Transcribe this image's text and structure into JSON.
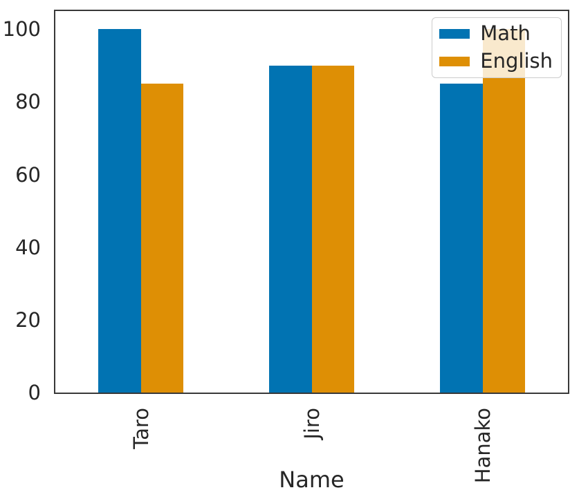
{
  "chart_data": {
    "type": "bar",
    "title": "",
    "xlabel": "Name",
    "ylabel": "",
    "categories": [
      "Taro",
      "Jiro",
      "Hanako"
    ],
    "series": [
      {
        "name": "Math",
        "color": "#0173b2",
        "values": [
          100,
          90,
          85
        ]
      },
      {
        "name": "English",
        "color": "#de8f05",
        "values": [
          85,
          90,
          100
        ]
      }
    ],
    "yticks": [
      0,
      20,
      40,
      60,
      80,
      100
    ],
    "ylim": [
      0,
      105
    ],
    "grid": false,
    "legend_position": "upper right",
    "legend_entries": [
      "Math",
      "English"
    ],
    "xtick_rotation": 90,
    "bar_group_fraction": 0.5,
    "axis_color": "#383838",
    "text_color": "#262626",
    "background_color": "#ffffff"
  }
}
